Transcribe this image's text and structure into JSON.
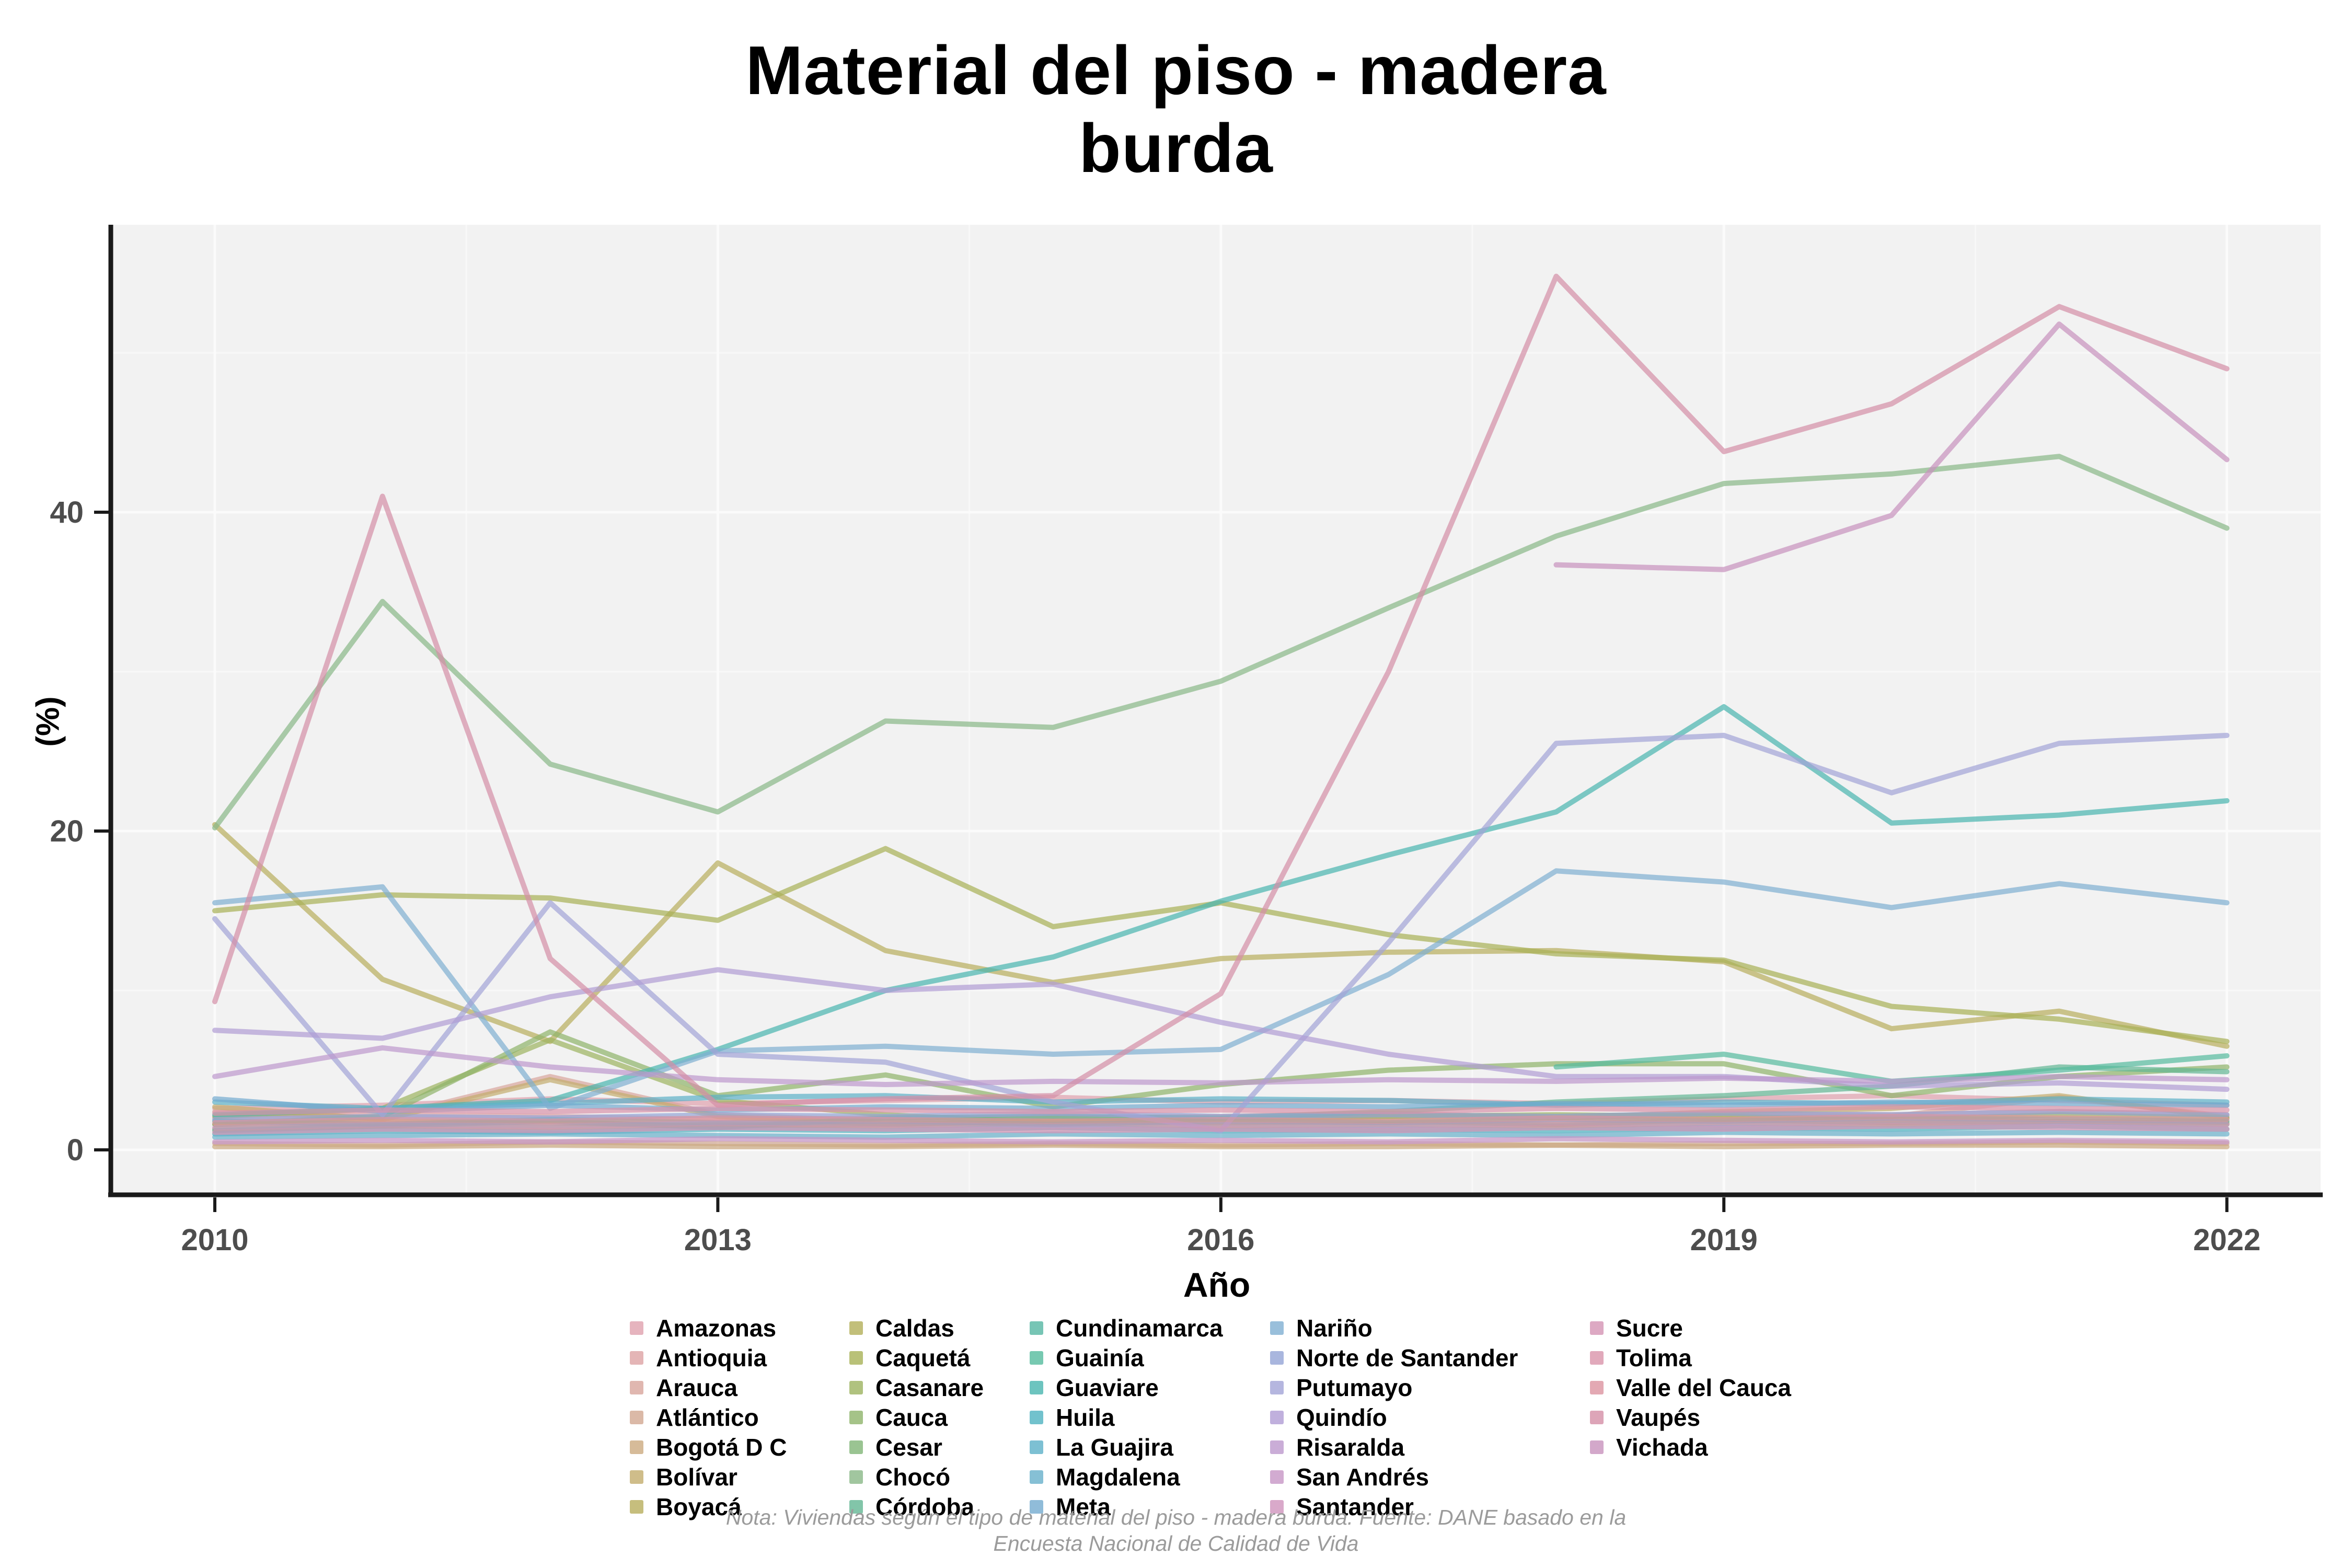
{
  "title": {
    "line1": "Material del piso - madera",
    "line2": "burda"
  },
  "footer": {
    "line1": "Nota: Viviendas según el tipo de material del piso - madera burda. Fuente: DANE basado en la",
    "line2": "Encuesta Nacional de Calidad de Vida"
  },
  "chart_data": {
    "type": "line",
    "title": "Material del piso - madera burda",
    "xlabel": "Año",
    "ylabel": "(%)",
    "legend_position": "bottom",
    "grid": true,
    "panel_bg": "#f2f2f2",
    "axis_color": "#1a1a1a",
    "tick_label_color": "#4d4d4d",
    "x": [
      2010,
      2011,
      2012,
      2013,
      2014,
      2015,
      2016,
      2017,
      2018,
      2019,
      2020,
      2021,
      2022
    ],
    "x_ticks": [
      2010,
      2013,
      2016,
      2019,
      2022
    ],
    "y_ticks": [
      0,
      20,
      40
    ],
    "ylim": [
      -2.8,
      58
    ],
    "series": [
      {
        "name": "Amazonas",
        "color": "#e0a1ae",
        "values": [
          2.6,
          2.8,
          3.2,
          2.9,
          3.1,
          3.3,
          3.0,
          3.1,
          2.9,
          3.2,
          3.4,
          3.1,
          2.8
        ]
      },
      {
        "name": "Antioquia",
        "color": "#dda3a4",
        "values": [
          2.0,
          2.2,
          2.1,
          1.9,
          2.0,
          2.1,
          2.0,
          2.2,
          2.1,
          2.3,
          2.2,
          2.4,
          2.2
        ]
      },
      {
        "name": "Arauca",
        "color": "#d8a59c",
        "values": [
          2.4,
          2.0,
          4.6,
          2.2,
          1.8,
          2.0,
          2.1,
          2.3,
          2.0,
          2.2,
          2.1,
          3.3,
          2.1
        ]
      },
      {
        "name": "Atlántico",
        "color": "#d2a891",
        "values": [
          0.4,
          0.3,
          0.5,
          0.4,
          0.3,
          0.4,
          0.3,
          0.4,
          0.3,
          0.4,
          0.4,
          0.5,
          0.4
        ]
      },
      {
        "name": "Bogotá D C",
        "color": "#ccaa80",
        "values": [
          0.2,
          0.2,
          0.3,
          0.2,
          0.2,
          0.3,
          0.2,
          0.2,
          0.3,
          0.2,
          0.3,
          0.3,
          0.2
        ]
      },
      {
        "name": "Bolívar",
        "color": "#c3ac6d",
        "values": [
          2.7,
          1.9,
          4.4,
          2.1,
          1.6,
          1.8,
          2.0,
          2.1,
          2.0,
          2.4,
          2.6,
          3.4,
          2.0
        ]
      },
      {
        "name": "Boyacá",
        "color": "#b8ae5c",
        "values": [
          20.4,
          10.7,
          6.8,
          18.0,
          12.5,
          10.5,
          12.0,
          12.4,
          12.5,
          11.8,
          7.6,
          8.7,
          6.5
        ]
      },
      {
        "name": "Caldas",
        "color": "#b3af59",
        "values": [
          1.6,
          1.8,
          1.7,
          1.5,
          1.6,
          1.8,
          1.7,
          1.8,
          1.6,
          1.9,
          1.7,
          1.8,
          1.7
        ]
      },
      {
        "name": "Caquetá",
        "color": "#a8b156",
        "values": [
          15.0,
          16.0,
          15.8,
          14.4,
          18.9,
          14.0,
          15.5,
          13.5,
          12.3,
          11.9,
          9.0,
          8.2,
          6.8
        ]
      },
      {
        "name": "Casanare",
        "color": "#9cb35f",
        "values": [
          2.1,
          2.6,
          6.9,
          3.1,
          2.2,
          1.7,
          1.9,
          2.1,
          2.2,
          2.1,
          1.9,
          2.2,
          2.0
        ]
      },
      {
        "name": "Cauca",
        "color": "#8fb46a",
        "values": [
          1.6,
          2.1,
          7.4,
          3.4,
          4.7,
          2.7,
          4.1,
          5.0,
          5.4,
          5.4,
          3.4,
          4.6,
          5.2
        ]
      },
      {
        "name": "Cesar",
        "color": "#81b577",
        "values": [
          1.3,
          1.5,
          1.4,
          1.6,
          1.5,
          1.7,
          1.5,
          1.6,
          1.5,
          1.7,
          1.6,
          1.8,
          1.6
        ]
      },
      {
        "name": "Chocó",
        "color": "#89b887",
        "values": [
          20.2,
          34.4,
          24.2,
          21.2,
          26.9,
          26.5,
          29.4,
          34.0,
          38.5,
          41.8,
          42.4,
          43.5,
          39.0
        ]
      },
      {
        "name": "Córdoba",
        "color": "#63b794",
        "values": [
          1.2,
          1.5,
          1.8,
          1.4,
          2.0,
          2.1,
          2.0,
          2.4,
          3.0,
          3.4,
          4.0,
          5.2,
          4.9
        ]
      },
      {
        "name": "Cundinamarca",
        "color": "#55b7a2",
        "values": [
          1.8,
          1.6,
          1.9,
          1.7,
          1.8,
          1.6,
          1.8,
          1.7,
          1.9,
          1.8,
          2.0,
          1.9,
          1.8
        ]
      },
      {
        "name": "Guainía",
        "color": "#55bb9e",
        "values": [
          null,
          null,
          null,
          null,
          null,
          null,
          null,
          null,
          5.2,
          6.0,
          4.3,
          5.0,
          5.9
        ]
      },
      {
        "name": "Guaviare",
        "color": "#49b5af",
        "values": [
          2.2,
          2.6,
          3.1,
          6.3,
          10.0,
          12.1,
          15.6,
          18.5,
          21.2,
          27.8,
          20.5,
          21.0,
          21.9
        ]
      },
      {
        "name": "Huila",
        "color": "#4fb3c0",
        "values": [
          1.0,
          1.2,
          1.1,
          1.3,
          1.2,
          1.4,
          1.2,
          1.3,
          1.2,
          1.4,
          1.3,
          1.5,
          1.3
        ]
      },
      {
        "name": "La Guajira",
        "color": "#5cb0c8",
        "values": [
          3.0,
          2.6,
          2.9,
          3.3,
          3.4,
          3.0,
          3.2,
          3.1,
          2.8,
          3.0,
          2.9,
          3.2,
          3.0
        ]
      },
      {
        "name": "Magdalena",
        "color": "#68b0cb",
        "values": [
          0.8,
          0.9,
          1.0,
          0.9,
          0.8,
          1.0,
          0.9,
          1.0,
          0.9,
          1.1,
          1.0,
          1.1,
          1.0
        ]
      },
      {
        "name": "Meta",
        "color": "#74abd0",
        "values": [
          3.2,
          2.4,
          2.8,
          2.5,
          2.7,
          2.6,
          2.8,
          2.7,
          2.9,
          2.8,
          3.0,
          2.9,
          2.8
        ]
      },
      {
        "name": "Nariño",
        "color": "#7fafd2",
        "values": [
          15.5,
          16.5,
          2.6,
          6.2,
          6.5,
          6.0,
          6.3,
          11.0,
          17.5,
          16.8,
          15.2,
          16.7,
          15.5
        ]
      },
      {
        "name": "Norte de Santander",
        "color": "#94a4d6",
        "values": [
          1.9,
          2.1,
          2.0,
          2.2,
          2.1,
          2.3,
          2.1,
          2.2,
          2.1,
          2.3,
          2.2,
          2.4,
          2.2
        ]
      },
      {
        "name": "Putumayo",
        "color": "#a2a4d7",
        "values": [
          14.5,
          2.2,
          15.5,
          6.0,
          5.5,
          3.0,
          1.2,
          13.0,
          25.5,
          26.0,
          22.4,
          25.5,
          26.0
        ]
      },
      {
        "name": "Quindío",
        "color": "#b09cd4",
        "values": [
          7.5,
          7.0,
          9.6,
          11.3,
          10.0,
          10.4,
          8.0,
          6.0,
          4.6,
          4.6,
          4.0,
          4.2,
          3.8
        ]
      },
      {
        "name": "Risaralda",
        "color": "#bd99cd",
        "values": [
          4.6,
          6.4,
          5.2,
          4.4,
          4.1,
          4.3,
          4.2,
          4.4,
          4.3,
          4.5,
          4.3,
          4.6,
          4.4
        ]
      },
      {
        "name": "San Andrés",
        "color": "#c796c6",
        "values": [
          0.5,
          0.6,
          0.5,
          0.7,
          0.6,
          0.5,
          0.6,
          0.5,
          0.7,
          0.6,
          0.5,
          0.6,
          0.5
        ]
      },
      {
        "name": "Santander",
        "color": "#cf94bd",
        "values": [
          1.4,
          1.6,
          1.5,
          1.7,
          1.6,
          1.5,
          1.6,
          1.5,
          1.7,
          1.6,
          1.8,
          1.7,
          1.6
        ]
      },
      {
        "name": "Sucre",
        "color": "#d593b4",
        "values": [
          1.1,
          1.3,
          1.2,
          1.4,
          1.3,
          1.2,
          1.3,
          1.2,
          1.4,
          1.3,
          1.5,
          1.4,
          1.3
        ]
      },
      {
        "name": "Tolima",
        "color": "#d993aa",
        "values": [
          2.3,
          2.5,
          2.4,
          2.6,
          2.5,
          2.4,
          2.5,
          2.4,
          2.6,
          2.5,
          2.7,
          2.6,
          2.5
        ]
      },
      {
        "name": "Valle del Cauca",
        "color": "#dc94a0",
        "values": [
          1.7,
          1.9,
          1.8,
          2.0,
          1.9,
          1.8,
          1.9,
          1.8,
          2.0,
          1.9,
          2.1,
          2.0,
          1.9
        ]
      },
      {
        "name": "Vaupés",
        "color": "#d48fa6",
        "values": [
          9.3,
          41.0,
          12.0,
          2.8,
          3.2,
          3.4,
          9.8,
          30.0,
          54.8,
          43.8,
          46.8,
          52.9,
          49.0
        ]
      },
      {
        "name": "Vichada",
        "color": "#c892bd",
        "values": [
          null,
          null,
          null,
          null,
          null,
          null,
          null,
          null,
          36.7,
          36.4,
          39.8,
          51.8,
          43.3
        ]
      }
    ]
  }
}
